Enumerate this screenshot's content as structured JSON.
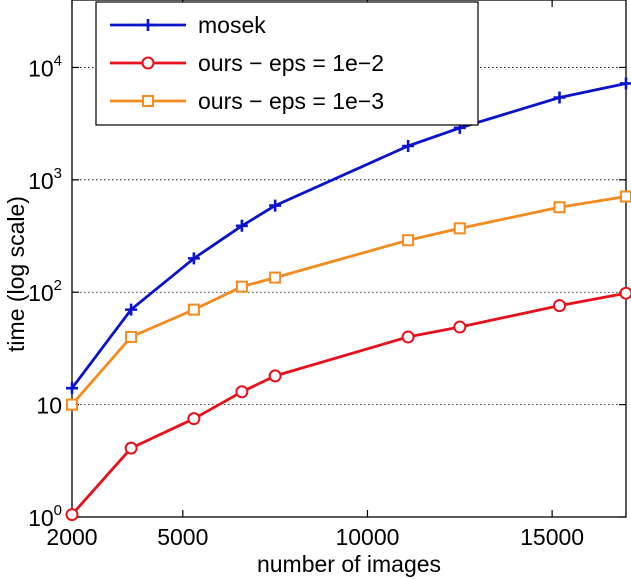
{
  "chart_data": {
    "type": "line",
    "title": "",
    "xlabel": "number of images",
    "ylabel": "time (log scale)",
    "xlim": [
      2000,
      17000
    ],
    "ylim_log10": [
      0,
      4.6
    ],
    "y_scale": "log",
    "x_ticks": [
      {
        "value": 2000,
        "label": "2000"
      },
      {
        "value": 5000,
        "label": "5000"
      },
      {
        "value": 10000,
        "label": "10000"
      },
      {
        "value": 15000,
        "label": "15000"
      }
    ],
    "y_ticks": [
      {
        "value": 1,
        "base": "10",
        "exp": "0"
      },
      {
        "value": 10,
        "base": "10",
        "exp": ""
      },
      {
        "value": 100,
        "base": "10",
        "exp": "2"
      },
      {
        "value": 1000,
        "base": "10",
        "exp": "3"
      },
      {
        "value": 10000,
        "base": "10",
        "exp": "4"
      }
    ],
    "grid": "y-major-dotted",
    "legend_position": "top-left",
    "series": [
      {
        "name": "mosek",
        "color": "#0a14cc",
        "marker": "plus",
        "x": [
          2000,
          3600,
          5300,
          6600,
          7500,
          11100,
          12500,
          15200,
          17000
        ],
        "y": [
          14,
          70,
          200,
          390,
          590,
          2000,
          2900,
          5400,
          7200
        ]
      },
      {
        "name": "ours − eps = 1e−2",
        "color": "#e8101a",
        "marker": "circle",
        "x": [
          2000,
          3600,
          5300,
          6600,
          7500,
          11100,
          12500,
          15200,
          17000
        ],
        "y": [
          1.05,
          4.1,
          7.5,
          13,
          18,
          40,
          49,
          76,
          98
        ]
      },
      {
        "name": "ours − eps = 1e−3",
        "color": "#f58a1f",
        "marker": "square",
        "x": [
          2000,
          3600,
          5300,
          6600,
          7500,
          11100,
          12500,
          15200,
          17000
        ],
        "y": [
          10,
          40,
          70,
          112,
          135,
          290,
          370,
          570,
          710
        ]
      }
    ]
  }
}
